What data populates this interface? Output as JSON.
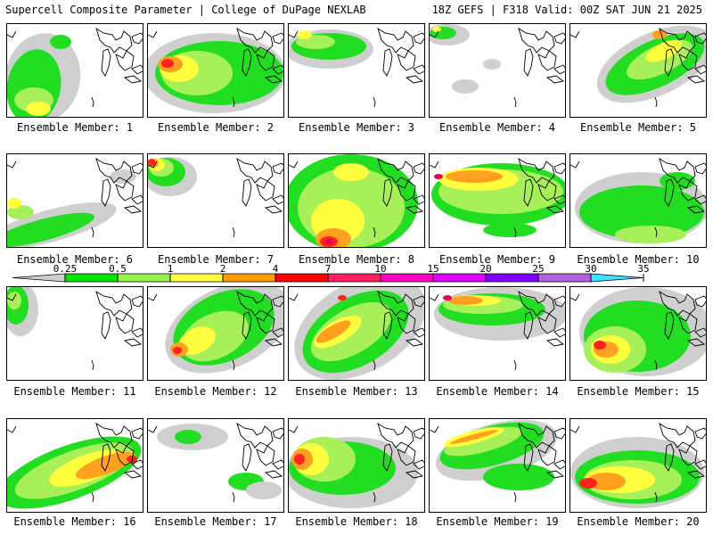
{
  "header": {
    "title": "Supercell Composite Parameter | College of DuPage NEXLAB",
    "run_info": "18Z GEFS | F318 Valid: 00Z SAT JUN 21 2025"
  },
  "colorbar": {
    "ticks": [
      "0.25",
      "0.5",
      "1",
      "2",
      "4",
      "7",
      "10",
      "15",
      "20",
      "25",
      "30",
      "35"
    ],
    "colors": [
      "#cfcfcf",
      "#00e400",
      "#98f04a",
      "#ffff40",
      "#ffa000",
      "#ff0000",
      "#ff2060",
      "#ff00c0",
      "#e000ff",
      "#8000ff",
      "#b060e0",
      "#40e0ff"
    ]
  },
  "panels": [
    {
      "label": "Ensemble Member: 1"
    },
    {
      "label": "Ensemble Member: 2"
    },
    {
      "label": "Ensemble Member: 3"
    },
    {
      "label": "Ensemble Member: 4"
    },
    {
      "label": "Ensemble Member: 5"
    },
    {
      "label": "Ensemble Member: 6"
    },
    {
      "label": "Ensemble Member: 7"
    },
    {
      "label": "Ensemble Member: 8"
    },
    {
      "label": "Ensemble Member: 9"
    },
    {
      "label": "Ensemble Member: 10"
    },
    {
      "label": "Ensemble Member: 11"
    },
    {
      "label": "Ensemble Member: 12"
    },
    {
      "label": "Ensemble Member: 13"
    },
    {
      "label": "Ensemble Member: 14"
    },
    {
      "label": "Ensemble Member: 15"
    },
    {
      "label": "Ensemble Member: 16"
    },
    {
      "label": "Ensemble Member: 17"
    },
    {
      "label": "Ensemble Member: 18"
    },
    {
      "label": "Ensemble Member: 19"
    },
    {
      "label": "Ensemble Member: 20"
    }
  ]
}
